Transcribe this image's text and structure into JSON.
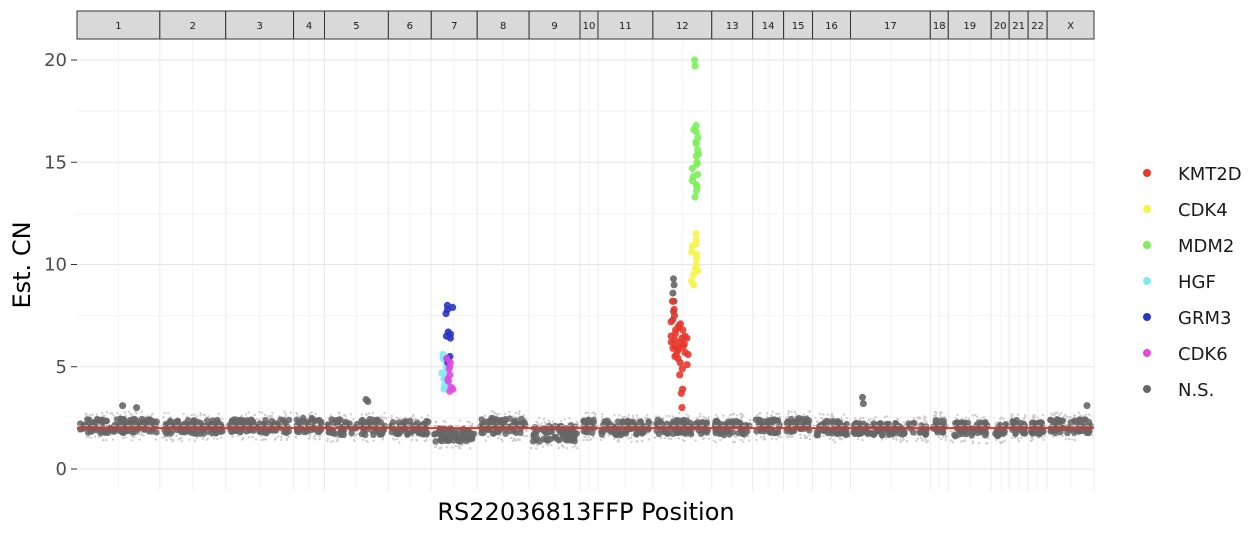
{
  "chart_data": {
    "type": "scatter",
    "title": "",
    "xlabel": "RS22036813FFP Position",
    "ylabel": "Est. CN",
    "ylim": [
      0,
      21
    ],
    "yticks": [
      0,
      5,
      10,
      15,
      20
    ],
    "grid": true,
    "legend_position": "right",
    "reference_line": {
      "value": 2,
      "color": "#d6362b"
    },
    "panels": [
      {
        "label": "1",
        "width": 83
      },
      {
        "label": "2",
        "width": 66
      },
      {
        "label": "3",
        "width": 68
      },
      {
        "label": "4",
        "width": 31
      },
      {
        "label": "5",
        "width": 64
      },
      {
        "label": "6",
        "width": 43
      },
      {
        "label": "7",
        "width": 46
      },
      {
        "label": "8",
        "width": 52
      },
      {
        "label": "9",
        "width": 51
      },
      {
        "label": "10",
        "width": 18
      },
      {
        "label": "11",
        "width": 55
      },
      {
        "label": "12",
        "width": 59
      },
      {
        "label": "13",
        "width": 41
      },
      {
        "label": "14",
        "width": 31
      },
      {
        "label": "15",
        "width": 29
      },
      {
        "label": "16",
        "width": 38
      },
      {
        "label": "17",
        "width": 80
      },
      {
        "label": "18",
        "width": 18
      },
      {
        "label": "19",
        "width": 43
      },
      {
        "label": "20",
        "width": 18
      },
      {
        "label": "21",
        "width": 19
      },
      {
        "label": "22",
        "width": 19
      },
      {
        "label": "X",
        "width": 47
      }
    ],
    "series": [
      {
        "name": "KMT2D",
        "color": "#e8372b",
        "panel": "12",
        "x": [
          0.35,
          0.4,
          0.45,
          0.5,
          0.55
        ],
        "values": [
          [
            8.2,
            7.8,
            7.2,
            6.8,
            6.5,
            6.2,
            5.9,
            5.6
          ],
          [
            7.5,
            7.0,
            6.6,
            6.3,
            6.0,
            5.8,
            5.5
          ],
          [
            7.1,
            6.9,
            6.4,
            6.2,
            5.9,
            5.4,
            4.9
          ],
          [
            6.8,
            6.5,
            6.1,
            5.7,
            5.2,
            4.6,
            3.9,
            3.7,
            3.0
          ],
          [
            6.4,
            6.0,
            5.6,
            5.1
          ]
        ]
      },
      {
        "name": "CDK4",
        "color": "#f5f54a",
        "panel": "12",
        "x": [
          0.7,
          0.71
        ],
        "values": [
          [
            11.5,
            11.2,
            10.9,
            10.6,
            10.3,
            10.0,
            9.8,
            9.5,
            9.2,
            9.0
          ],
          [
            11.0,
            10.5,
            9.7
          ]
        ]
      },
      {
        "name": "MDM2",
        "color": "#7df05a",
        "panel": "12",
        "x": [
          0.72,
          0.73
        ],
        "values": [
          [
            20.0,
            19.7,
            16.8,
            16.5,
            16.2,
            15.9,
            15.6,
            15.3,
            15.0,
            14.7,
            14.4,
            14.1,
            13.8,
            13.6,
            13.3
          ],
          [
            16.6,
            16.0,
            15.4,
            14.9,
            14.3,
            13.9
          ]
        ]
      },
      {
        "name": "HGF",
        "color": "#7eeaf0",
        "panel": "7",
        "x": [
          0.28,
          0.32
        ],
        "values": [
          [
            5.6,
            5.3,
            5.0,
            4.7,
            4.4,
            4.1,
            3.9
          ],
          [
            5.4,
            5.1,
            4.8,
            4.5,
            4.2
          ]
        ]
      },
      {
        "name": "GRM3",
        "color": "#2a35c4",
        "panel": "7",
        "x": [
          0.38,
          0.4
        ],
        "values": [
          [
            8.0,
            7.8,
            7.6,
            6.7,
            6.5,
            6.4,
            5.5,
            5.2
          ],
          [
            7.9,
            6.6,
            5.4
          ]
        ]
      },
      {
        "name": "CDK6",
        "color": "#e04be0",
        "panel": "7",
        "x": [
          0.39,
          0.41
        ],
        "values": [
          [
            5.4,
            5.2,
            4.9,
            4.6,
            4.3,
            4.0,
            3.8
          ],
          [
            5.0,
            4.4,
            3.9
          ]
        ]
      },
      {
        "name": "N.S.",
        "color": "#666666",
        "baseline": [
          {
            "panel": "1",
            "mean": 2.1,
            "spread": 0.35
          },
          {
            "panel": "2",
            "mean": 2.05,
            "spread": 0.35
          },
          {
            "panel": "3",
            "mean": 2.1,
            "spread": 0.35
          },
          {
            "panel": "4",
            "mean": 2.15,
            "spread": 0.35
          },
          {
            "panel": "5",
            "mean": 2.05,
            "spread": 0.4
          },
          {
            "panel": "6",
            "mean": 2.0,
            "spread": 0.35
          },
          {
            "panel": "7",
            "mean": 1.7,
            "spread": 0.35
          },
          {
            "panel": "8",
            "mean": 2.1,
            "spread": 0.4
          },
          {
            "panel": "9",
            "mean": 1.75,
            "spread": 0.4
          },
          {
            "panel": "10",
            "mean": 2.1,
            "spread": 0.35
          },
          {
            "panel": "11",
            "mean": 2.0,
            "spread": 0.35
          },
          {
            "panel": "12",
            "mean": 2.05,
            "spread": 0.35
          },
          {
            "panel": "13",
            "mean": 2.0,
            "spread": 0.35
          },
          {
            "panel": "14",
            "mean": 2.1,
            "spread": 0.35
          },
          {
            "panel": "15",
            "mean": 2.15,
            "spread": 0.35
          },
          {
            "panel": "16",
            "mean": 2.0,
            "spread": 0.35
          },
          {
            "panel": "17",
            "mean": 1.95,
            "spread": 0.3
          },
          {
            "panel": "18",
            "mean": 2.1,
            "spread": 0.35
          },
          {
            "panel": "19",
            "mean": 1.95,
            "spread": 0.35
          },
          {
            "panel": "20",
            "mean": 1.9,
            "spread": 0.3
          },
          {
            "panel": "21",
            "mean": 2.05,
            "spread": 0.35
          },
          {
            "panel": "22",
            "mean": 2.0,
            "spread": 0.3
          },
          {
            "panel": "X",
            "mean": 2.1,
            "spread": 0.35
          }
        ],
        "outliers": [
          {
            "panel": "1",
            "x": 0.55,
            "y": 3.1
          },
          {
            "panel": "1",
            "x": 0.72,
            "y": 3.0
          },
          {
            "panel": "5",
            "x": 0.65,
            "y": 3.4
          },
          {
            "panel": "5",
            "x": 0.68,
            "y": 3.3
          },
          {
            "panel": "12",
            "x": 0.35,
            "y": 9.3
          },
          {
            "panel": "12",
            "x": 0.36,
            "y": 9.0
          },
          {
            "panel": "12",
            "x": 0.34,
            "y": 8.6
          },
          {
            "panel": "12",
            "x": 0.36,
            "y": 8.2
          },
          {
            "panel": "12",
            "x": 0.35,
            "y": 7.7
          },
          {
            "panel": "12",
            "x": 0.34,
            "y": 7.3
          },
          {
            "panel": "17",
            "x": 0.15,
            "y": 3.5
          },
          {
            "panel": "17",
            "x": 0.16,
            "y": 3.2
          },
          {
            "panel": "X",
            "x": 0.85,
            "y": 3.1
          }
        ]
      }
    ]
  }
}
